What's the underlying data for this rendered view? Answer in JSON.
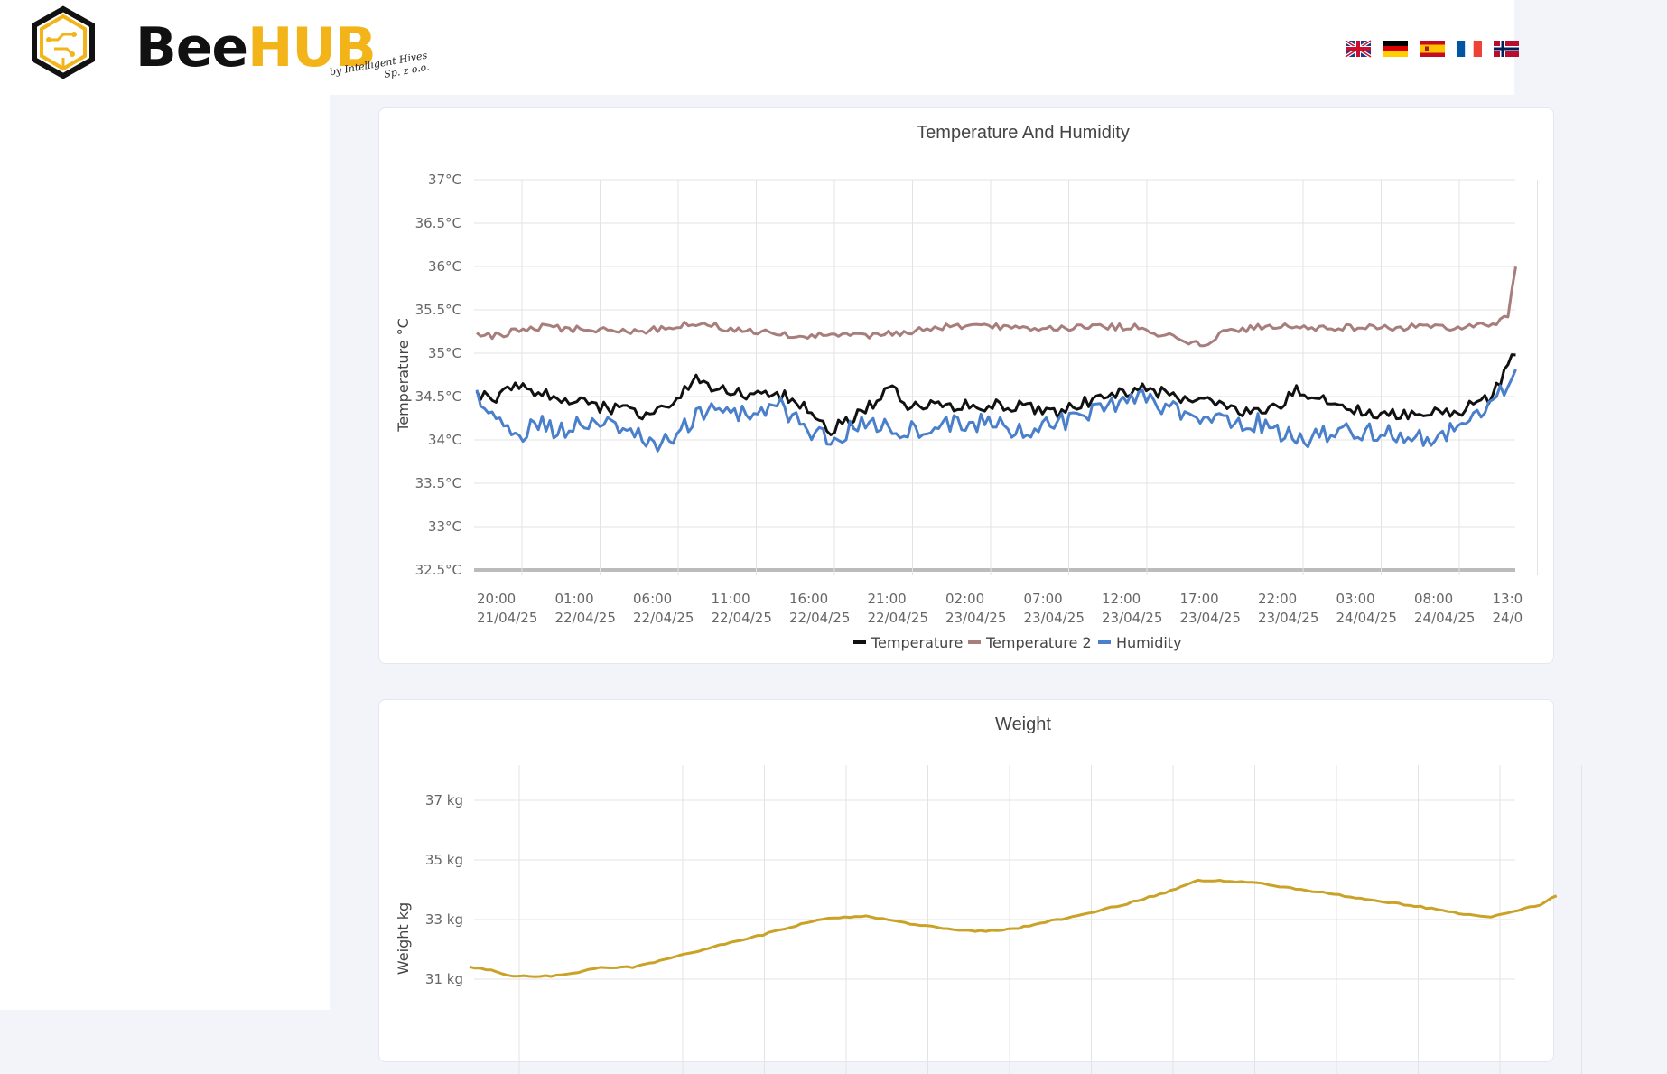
{
  "brand": {
    "name_part1": "Bee",
    "name_part2": "HUB",
    "tagline_line1": "by Intelligent Hives",
    "tagline_line2": "Sp. z o.o.",
    "accent": "#f2b418"
  },
  "languages": [
    "en",
    "de",
    "es",
    "fr",
    "no"
  ],
  "temp_chart": {
    "chart_data": {
      "type": "line",
      "title": "Temperature And Humidity",
      "ylabel": "Temperature °C",
      "ylim": [
        32.5,
        37
      ],
      "y_ticks": [
        "37°C",
        "36.5°C",
        "36°C",
        "35.5°C",
        "35°C",
        "34.5°C",
        "34°C",
        "33.5°C",
        "33°C",
        "32.5°C"
      ],
      "x_ticks": [
        [
          "20:00",
          "21/04/25"
        ],
        [
          "01:00",
          "22/04/25"
        ],
        [
          "06:00",
          "22/04/25"
        ],
        [
          "11:00",
          "22/04/25"
        ],
        [
          "16:00",
          "22/04/25"
        ],
        [
          "21:00",
          "22/04/25"
        ],
        [
          "02:00",
          "23/04/25"
        ],
        [
          "07:00",
          "23/04/25"
        ],
        [
          "12:00",
          "23/04/25"
        ],
        [
          "17:00",
          "23/04/25"
        ],
        [
          "22:00",
          "23/04/25"
        ],
        [
          "03:00",
          "24/04/25"
        ],
        [
          "08:00",
          "24/04/25"
        ],
        [
          "13:0",
          "24/0"
        ]
      ],
      "legend_position": "bottom",
      "grid": true,
      "series": [
        {
          "name": "Temperature",
          "color": "#111111",
          "keyframes": [
            [
              0,
              34.5
            ],
            [
              0.3,
              34.5
            ],
            [
              0.5,
              34.6
            ],
            [
              1.0,
              34.5
            ],
            [
              1.5,
              34.4
            ],
            [
              2.1,
              34.3
            ],
            [
              2.5,
              34.4
            ],
            [
              2.8,
              34.7
            ],
            [
              3.0,
              34.6
            ],
            [
              3.5,
              34.5
            ],
            [
              4.0,
              34.5
            ],
            [
              4.3,
              34.3
            ],
            [
              4.5,
              34.1
            ],
            [
              4.9,
              34.3
            ],
            [
              5.3,
              34.6
            ],
            [
              5.5,
              34.4
            ],
            [
              6.0,
              34.4
            ],
            [
              6.5,
              34.4
            ],
            [
              7.0,
              34.4
            ],
            [
              7.4,
              34.3
            ],
            [
              8.0,
              34.5
            ],
            [
              8.5,
              34.6
            ],
            [
              9.0,
              34.5
            ],
            [
              9.5,
              34.4
            ],
            [
              9.8,
              34.3
            ],
            [
              10.3,
              34.4
            ],
            [
              10.5,
              34.6
            ],
            [
              11.0,
              34.4
            ],
            [
              11.5,
              34.3
            ],
            [
              12.0,
              34.3
            ],
            [
              12.5,
              34.3
            ],
            [
              13.0,
              34.5
            ],
            [
              13.3,
              35.0
            ]
          ]
        },
        {
          "name": "Temperature 2",
          "color": "#a77e7b",
          "keyframes": [
            [
              0,
              35.2
            ],
            [
              0.2,
              35.2
            ],
            [
              0.8,
              35.3
            ],
            [
              2.0,
              35.25
            ],
            [
              2.5,
              35.3
            ],
            [
              2.8,
              35.35
            ],
            [
              3.5,
              35.25
            ],
            [
              4.0,
              35.2
            ],
            [
              5.0,
              35.2
            ],
            [
              6.0,
              35.3
            ],
            [
              7.0,
              35.3
            ],
            [
              8.0,
              35.3
            ],
            [
              8.5,
              35.3
            ],
            [
              9.0,
              35.15
            ],
            [
              9.3,
              35.1
            ],
            [
              9.6,
              35.25
            ],
            [
              10.0,
              35.3
            ],
            [
              11.0,
              35.3
            ],
            [
              12.0,
              35.3
            ],
            [
              12.5,
              35.3
            ],
            [
              13.0,
              35.35
            ],
            [
              13.2,
              35.4
            ],
            [
              13.3,
              36.0
            ]
          ]
        },
        {
          "name": "Humidity",
          "color": "#4a7fcb",
          "keyframes": [
            [
              0,
              34.5
            ],
            [
              0.3,
              34.2
            ],
            [
              0.5,
              34.0
            ],
            [
              0.8,
              34.2
            ],
            [
              1.0,
              34.1
            ],
            [
              1.5,
              34.2
            ],
            [
              2.0,
              34.1
            ],
            [
              2.3,
              33.9
            ],
            [
              2.6,
              34.1
            ],
            [
              3.0,
              34.4
            ],
            [
              3.3,
              34.3
            ],
            [
              3.6,
              34.3
            ],
            [
              3.9,
              34.4
            ],
            [
              4.2,
              34.1
            ],
            [
              4.5,
              34.0
            ],
            [
              5.0,
              34.2
            ],
            [
              5.5,
              34.1
            ],
            [
              6.0,
              34.2
            ],
            [
              6.5,
              34.2
            ],
            [
              7.0,
              34.1
            ],
            [
              7.5,
              34.2
            ],
            [
              8.0,
              34.4
            ],
            [
              8.5,
              34.5
            ],
            [
              9.0,
              34.3
            ],
            [
              9.5,
              34.2
            ],
            [
              10.0,
              34.2
            ],
            [
              10.5,
              34.0
            ],
            [
              11.0,
              34.1
            ],
            [
              11.5,
              34.1
            ],
            [
              12.0,
              34.0
            ],
            [
              12.5,
              34.1
            ],
            [
              13.0,
              34.4
            ],
            [
              13.3,
              34.8
            ]
          ]
        }
      ]
    }
  },
  "weight_chart": {
    "chart_data": {
      "type": "line",
      "title": "Weight",
      "ylabel": "Weight kg",
      "y_ticks": [
        "37 kg",
        "35 kg",
        "33 kg",
        "31 kg"
      ],
      "y_tick_values": [
        37,
        35,
        33,
        31
      ],
      "grid": true,
      "series": [
        {
          "name": "",
          "color": "#c9a227",
          "keyframes": [
            [
              0,
              31.4
            ],
            [
              0.3,
              31.3
            ],
            [
              0.5,
              31.1
            ],
            [
              1.0,
              31.1
            ],
            [
              1.3,
              31.2
            ],
            [
              1.6,
              31.4
            ],
            [
              2.0,
              31.4
            ],
            [
              2.6,
              31.8
            ],
            [
              3.0,
              32.1
            ],
            [
              3.3,
              32.3
            ],
            [
              3.6,
              32.5
            ],
            [
              4.0,
              32.8
            ],
            [
              4.3,
              33.0
            ],
            [
              4.7,
              33.1
            ],
            [
              4.9,
              33.1
            ],
            [
              5.3,
              32.9
            ],
            [
              5.8,
              32.7
            ],
            [
              6.2,
              32.6
            ],
            [
              6.7,
              32.7
            ],
            [
              7.0,
              32.9
            ],
            [
              7.4,
              33.1
            ],
            [
              8.0,
              33.5
            ],
            [
              8.5,
              33.9
            ],
            [
              8.9,
              34.3
            ],
            [
              9.3,
              34.3
            ],
            [
              9.7,
              34.2
            ],
            [
              10.2,
              34.0
            ],
            [
              10.7,
              33.8
            ],
            [
              11.2,
              33.6
            ],
            [
              11.7,
              33.4
            ],
            [
              12.1,
              33.2
            ],
            [
              12.5,
              33.1
            ],
            [
              12.8,
              33.3
            ],
            [
              13.1,
              33.5
            ],
            [
              13.3,
              33.8
            ]
          ]
        }
      ]
    }
  }
}
